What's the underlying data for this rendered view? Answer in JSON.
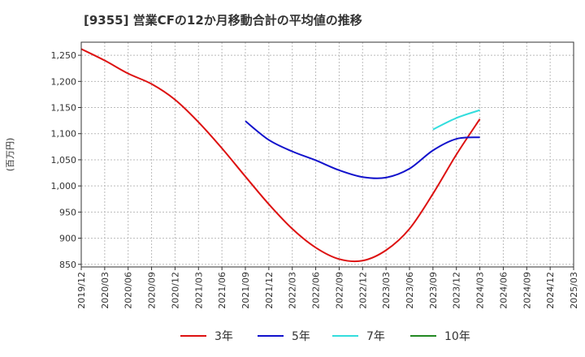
{
  "chart_data": {
    "type": "line",
    "title": "[9355]  営業CFの12か月移動合計の平均値の推移",
    "ylabel": "(百万円)",
    "xlabel": "",
    "ylim": [
      845,
      1275
    ],
    "yticks": [
      850,
      900,
      950,
      1000,
      1050,
      1100,
      1150,
      1200,
      1250
    ],
    "ytick_labels": [
      "850",
      "900",
      "950",
      "1,000",
      "1,050",
      "1,100",
      "1,150",
      "1,200",
      "1,250"
    ],
    "x_categories": [
      "2019/12",
      "2020/03",
      "2020/06",
      "2020/09",
      "2020/12",
      "2021/03",
      "2021/06",
      "2021/09",
      "2021/12",
      "2022/03",
      "2022/06",
      "2022/09",
      "2022/12",
      "2023/03",
      "2023/06",
      "2023/09",
      "2023/12",
      "2024/03",
      "2024/06",
      "2024/09",
      "2024/12",
      "2025/03"
    ],
    "grid": true,
    "legend_position": "bottom",
    "series": [
      {
        "name": "3年",
        "color": "#dd1111",
        "points": [
          [
            "2019/12",
            1262
          ],
          [
            "2020/03",
            1240
          ],
          [
            "2020/06",
            1215
          ],
          [
            "2020/09",
            1195
          ],
          [
            "2020/12",
            1165
          ],
          [
            "2021/03",
            1122
          ],
          [
            "2021/06",
            1072
          ],
          [
            "2021/09",
            1018
          ],
          [
            "2021/12",
            965
          ],
          [
            "2022/03",
            918
          ],
          [
            "2022/06",
            882
          ],
          [
            "2022/09",
            860
          ],
          [
            "2022/12",
            857
          ],
          [
            "2023/03",
            877
          ],
          [
            "2023/06",
            918
          ],
          [
            "2023/09",
            985
          ],
          [
            "2023/12",
            1060
          ],
          [
            "2024/03",
            1128
          ]
        ]
      },
      {
        "name": "5年",
        "color": "#1111cc",
        "points": [
          [
            "2021/09",
            1124
          ],
          [
            "2021/12",
            1088
          ],
          [
            "2022/03",
            1066
          ],
          [
            "2022/06",
            1049
          ],
          [
            "2022/09",
            1030
          ],
          [
            "2022/12",
            1017
          ],
          [
            "2023/03",
            1016
          ],
          [
            "2023/06",
            1033
          ],
          [
            "2023/09",
            1068
          ],
          [
            "2023/12",
            1090
          ],
          [
            "2024/03",
            1093
          ]
        ]
      },
      {
        "name": "7年",
        "color": "#33dddd",
        "points": [
          [
            "2023/09",
            1108
          ],
          [
            "2023/12",
            1130
          ],
          [
            "2024/03",
            1145
          ]
        ]
      },
      {
        "name": "10年",
        "color": "#228822",
        "points": []
      }
    ]
  }
}
